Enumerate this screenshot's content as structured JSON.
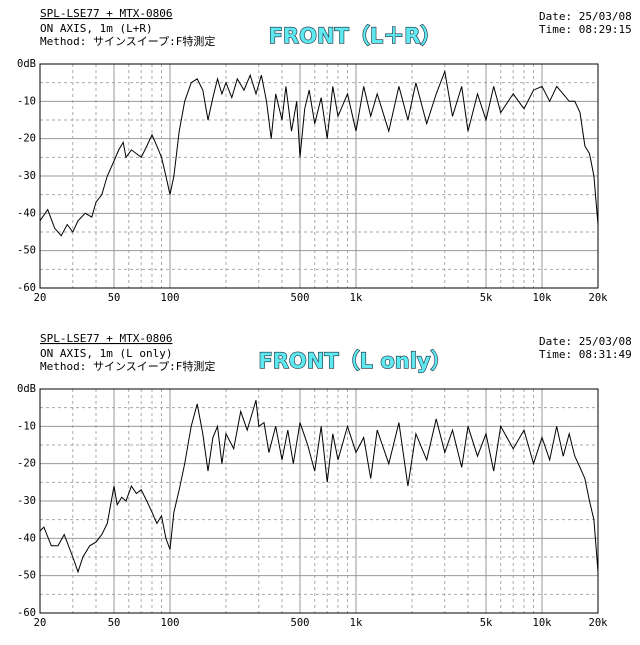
{
  "chart_data": [
    {
      "type": "line",
      "title": "FRONT（L＋R）",
      "model": "SPL-LSE77 + MTX-0806",
      "condition": "ON AXIS, 1m (L+R)",
      "method": "Method: サインスイープ:F特測定",
      "date": "Date: 25/03/08",
      "time": "Time: 08:29:15",
      "log_x": true,
      "grid": true,
      "color": "#000000",
      "xlim": [
        20,
        20000
      ],
      "ylim": [
        -60,
        0
      ],
      "xticks": [
        20,
        50,
        100,
        500,
        {
          "value": 1000,
          "label": "1k"
        },
        {
          "value": 5000,
          "label": "5k"
        },
        {
          "value": 10000,
          "label": "10k"
        },
        {
          "value": 20000,
          "label": "20k"
        }
      ],
      "yticks": [
        {
          "value": 0,
          "label": "0dB"
        },
        -10,
        -20,
        -30,
        -40,
        -50,
        -60
      ],
      "xgrid_minor": [
        30,
        40,
        60,
        70,
        80,
        90,
        200,
        300,
        400,
        600,
        700,
        800,
        900,
        2000,
        3000,
        4000,
        6000,
        7000,
        8000,
        9000
      ],
      "ygrid_minor": [
        -5,
        -15,
        -25,
        -35,
        -45,
        -55
      ],
      "x": [
        20,
        22,
        24,
        26,
        28,
        30,
        32,
        35,
        38,
        40,
        43,
        46,
        50,
        53,
        56,
        58,
        62,
        66,
        70,
        75,
        80,
        85,
        90,
        95,
        100,
        105,
        112,
        120,
        130,
        140,
        150,
        160,
        170,
        180,
        190,
        200,
        215,
        230,
        250,
        270,
        290,
        310,
        330,
        350,
        370,
        400,
        420,
        450,
        480,
        500,
        530,
        560,
        600,
        650,
        700,
        750,
        800,
        900,
        1000,
        1100,
        1200,
        1300,
        1500,
        1700,
        1900,
        2100,
        2400,
        2700,
        3000,
        3300,
        3700,
        4000,
        4500,
        5000,
        5500,
        6000,
        7000,
        8000,
        9000,
        10000,
        11000,
        12000,
        13000,
        14000,
        15000,
        16000,
        17000,
        18000,
        19000,
        20000
      ],
      "values": [
        -42,
        -39,
        -44,
        -46,
        -43,
        -45,
        -42,
        -40,
        -41,
        -37,
        -35,
        -30,
        -26,
        -23,
        -21,
        -25,
        -23,
        -24,
        -25,
        -22,
        -19,
        -22,
        -25,
        -30,
        -35,
        -30,
        -18,
        -10,
        -5,
        -4,
        -7,
        -15,
        -9,
        -4,
        -8,
        -5,
        -9,
        -4,
        -7,
        -3,
        -8,
        -3,
        -10,
        -20,
        -8,
        -15,
        -6,
        -18,
        -10,
        -25,
        -12,
        -7,
        -16,
        -9,
        -20,
        -6,
        -14,
        -8,
        -18,
        -6,
        -14,
        -8,
        -18,
        -6,
        -15,
        -5,
        -16,
        -8,
        -2,
        -14,
        -6,
        -18,
        -8,
        -15,
        -6,
        -13,
        -8,
        -12,
        -7,
        -6,
        -10,
        -6,
        -8,
        -10,
        -10,
        -13,
        -22,
        -24,
        -30,
        -43
      ]
    },
    {
      "type": "line",
      "title": "FRONT（L only）",
      "model": "SPL-LSE77 + MTX-0806",
      "condition": "ON AXIS, 1m (L only)",
      "method": "Method: サインスイープ:F特測定",
      "date": "Date: 25/03/08",
      "time": "Time: 08:31:49",
      "log_x": true,
      "grid": true,
      "color": "#000000",
      "xlim": [
        20,
        20000
      ],
      "ylim": [
        -60,
        0
      ],
      "xticks": [
        20,
        50,
        100,
        500,
        {
          "value": 1000,
          "label": "1k"
        },
        {
          "value": 5000,
          "label": "5k"
        },
        {
          "value": 10000,
          "label": "10k"
        },
        {
          "value": 20000,
          "label": "20k"
        }
      ],
      "yticks": [
        {
          "value": 0,
          "label": "0dB"
        },
        -10,
        -20,
        -30,
        -40,
        -50,
        -60
      ],
      "xgrid_minor": [
        30,
        40,
        60,
        70,
        80,
        90,
        200,
        300,
        400,
        600,
        700,
        800,
        900,
        2000,
        3000,
        4000,
        6000,
        7000,
        8000,
        9000
      ],
      "ygrid_minor": [
        -5,
        -15,
        -25,
        -35,
        -45,
        -55
      ],
      "x": [
        20,
        21,
        23,
        25,
        27,
        30,
        32,
        34,
        37,
        40,
        43,
        46,
        50,
        52,
        55,
        58,
        62,
        66,
        70,
        75,
        80,
        85,
        90,
        95,
        100,
        105,
        112,
        120,
        130,
        140,
        150,
        160,
        170,
        180,
        190,
        200,
        220,
        240,
        260,
        290,
        300,
        320,
        340,
        370,
        400,
        430,
        460,
        500,
        550,
        600,
        650,
        700,
        750,
        800,
        900,
        1000,
        1100,
        1200,
        1300,
        1500,
        1700,
        1900,
        2100,
        2400,
        2700,
        3000,
        3300,
        3700,
        4000,
        4500,
        5000,
        5500,
        6000,
        7000,
        8000,
        9000,
        10000,
        11000,
        12000,
        13000,
        14000,
        15000,
        16000,
        17000,
        18000,
        19000,
        20000
      ],
      "values": [
        -38,
        -37,
        -42,
        -42,
        -39,
        -45,
        -49,
        -45,
        -42,
        -41,
        -39,
        -36,
        -26,
        -31,
        -29,
        -30,
        -26,
        -28,
        -27,
        -30,
        -33,
        -36,
        -34,
        -40,
        -43,
        -33,
        -27,
        -20,
        -10,
        -4,
        -12,
        -22,
        -13,
        -10,
        -20,
        -12,
        -16,
        -6,
        -11,
        -3,
        -10,
        -9,
        -17,
        -10,
        -19,
        -11,
        -20,
        -9,
        -15,
        -22,
        -10,
        -25,
        -12,
        -19,
        -10,
        -17,
        -13,
        -24,
        -11,
        -20,
        -9,
        -26,
        -12,
        -19,
        -8,
        -17,
        -11,
        -21,
        -10,
        -18,
        -12,
        -22,
        -10,
        -16,
        -11,
        -20,
        -13,
        -19,
        -10,
        -18,
        -12,
        -18,
        -21,
        -24,
        -30,
        -35,
        -49
      ]
    }
  ]
}
